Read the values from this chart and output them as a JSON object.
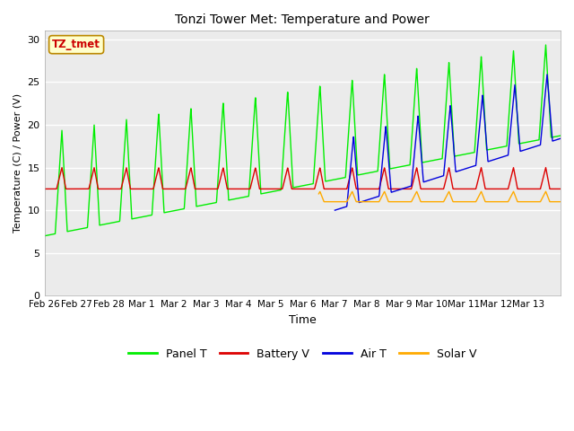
{
  "title": "Tonzi Tower Met: Temperature and Power",
  "xlabel": "Time",
  "ylabel": "Temperature (C) / Power (V)",
  "ylim": [
    0,
    31
  ],
  "yticks": [
    0,
    5,
    10,
    15,
    20,
    25,
    30
  ],
  "annotation_text": "TZ_tmet",
  "annotation_bg": "#ffffcc",
  "annotation_border": "#bb8800",
  "colors": {
    "panel_t": "#00ee00",
    "battery_v": "#dd0000",
    "air_t": "#0000dd",
    "solar_v": "#ffaa00"
  },
  "x_tick_labels": [
    "Feb 26",
    "Feb 27",
    "Feb 28",
    "Mar 1",
    "Mar 2",
    "Mar 3",
    "Mar 4",
    "Mar 5",
    "Mar 6",
    "Mar 7",
    "Mar 8",
    "Mar 9",
    "Mar 10",
    "Mar 11",
    "Mar 12",
    "Mar 13"
  ],
  "num_days": 16,
  "plot_bg": "#ebebeb",
  "fig_bg": "#ffffff"
}
